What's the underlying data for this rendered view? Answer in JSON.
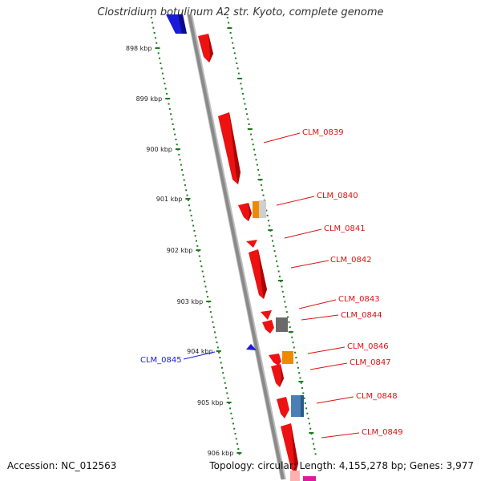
{
  "title": "Clostridium botulinum A2 str. Kyoto, complete genome",
  "accession_text": "Accession: NC_012563",
  "topology_text": "Topology: circular; Length: 4,155,278 bp; Genes: 3,977",
  "colors": {
    "backbone": "#8a8a8a",
    "tick": "#1e7a1e",
    "ruler_text": "#222222",
    "forward_gene": "#ee1111",
    "reverse_gene": "#1a1add",
    "label_forward": "#dd1111",
    "label_reverse": "#1a1add",
    "orange": "#ee8a00",
    "light_grey": "#cfcfcf",
    "dark_grey": "#6a6a6a",
    "steel_blue": "#4a7fb5",
    "magenta": "#e01aa0"
  },
  "ruler_labels": [
    "898 kbp",
    "899 kbp",
    "900 kbp",
    "901 kbp",
    "902 kbp",
    "903 kbp",
    "904 kbp",
    "905 kbp",
    "906 kbp"
  ],
  "gene_labels": [
    {
      "name": "CLM_0839",
      "strand": "forward"
    },
    {
      "name": "CLM_0840",
      "strand": "forward"
    },
    {
      "name": "CLM_0841",
      "strand": "forward"
    },
    {
      "name": "CLM_0842",
      "strand": "forward"
    },
    {
      "name": "CLM_0843",
      "strand": "forward"
    },
    {
      "name": "CLM_0844",
      "strand": "forward"
    },
    {
      "name": "CLM_0846",
      "strand": "forward"
    },
    {
      "name": "CLM_0847",
      "strand": "forward"
    },
    {
      "name": "CLM_0848",
      "strand": "forward"
    },
    {
      "name": "CLM_0849",
      "strand": "forward"
    },
    {
      "name": "CLM_0845",
      "strand": "reverse"
    }
  ]
}
